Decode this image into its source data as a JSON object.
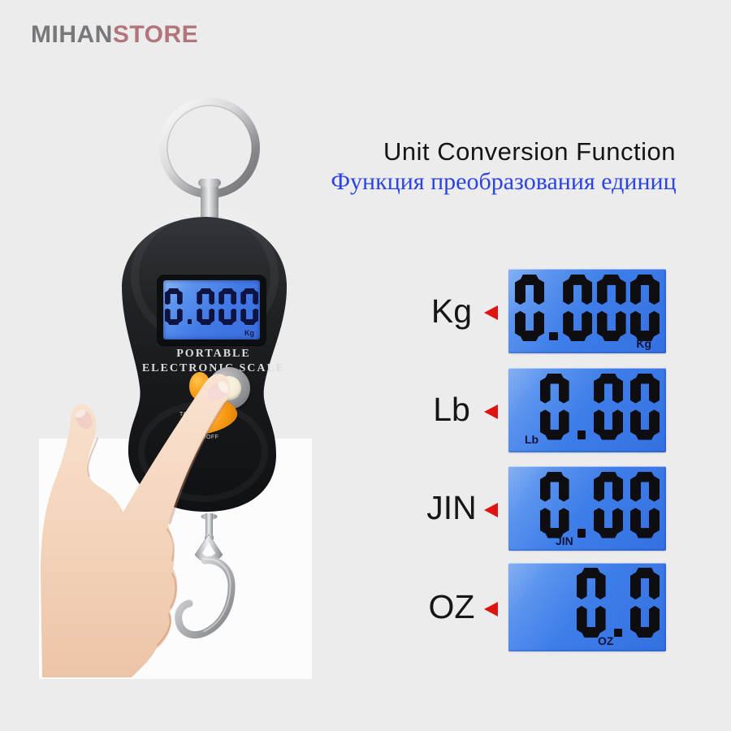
{
  "logo": {
    "part1": "MIHAN",
    "part2": "STORE"
  },
  "heading": {
    "title": "Unit Conversion Function",
    "subtitle_ru": "Функция преобразования единиц"
  },
  "device": {
    "display_value": "0.000",
    "display_unit": "Kg",
    "brand_line1": "PORTABLE",
    "brand_line2": "ELECTRONIC  SCALE",
    "buttons": {
      "tare": "TARE",
      "onoff": "ON/OFF"
    }
  },
  "panels": {
    "items": [
      {
        "label": "Kg",
        "display": "0.000",
        "unit": "Kg"
      },
      {
        "label": "Lb",
        "display": "0.00",
        "unit": "Lb"
      },
      {
        "label": "JIN",
        "display": "0.00",
        "unit": "JIN"
      },
      {
        "label": "OZ",
        "display": "0.0",
        "unit": "OZ"
      }
    ]
  },
  "colors": {
    "background": "#ececed",
    "accent_red": "#e01212",
    "lcd_blue": "#3e7ee9",
    "device_black": "#1b1d20",
    "logo_gray": "#77787a",
    "logo_rose": "#b2757c",
    "subtitle_blue": "#2b44e6",
    "button_orange": "#f79912"
  }
}
